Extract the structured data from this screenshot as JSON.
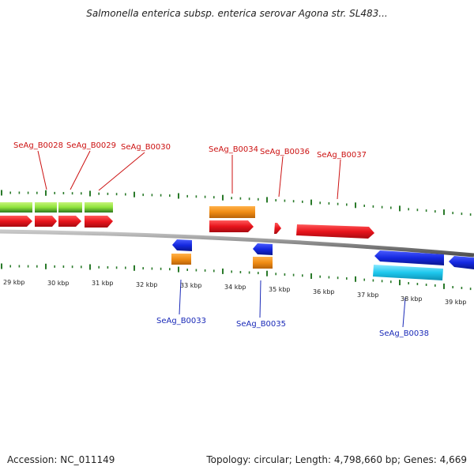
{
  "title": "Salmonella enterica subsp. enterica serovar Agona str. SL483...",
  "footer": {
    "accession": "Accession: NC_011149",
    "topology": "Topology: circular; Length: 4,798,660 bp; Genes: 4,669"
  },
  "colors": {
    "forward_cds": "#e8141c",
    "forward_gene": "#f08c14",
    "reverse_cds": "#1428e0",
    "reverse_gene": "#1ec8ee",
    "rna": "#8ee23a",
    "backbone": "#8a8a8a",
    "ticks": "#2a7a2a",
    "forward_label": "#cc1111",
    "reverse_label": "#1a2ab8"
  },
  "scale": {
    "kbp_ticks": [
      "29 kbp",
      "30 kbp",
      "31 kbp",
      "32 kbp",
      "33 kbp",
      "34 kbp",
      "35 kbp",
      "36 kbp",
      "37 kbp",
      "38 kbp",
      "39 kbp"
    ]
  },
  "genes": {
    "forward": [
      "SeAg_B0028",
      "SeAg_B0029",
      "SeAg_B0030",
      "SeAg_B0034",
      "SeAg_B0036",
      "SeAg_B0037"
    ],
    "reverse": [
      "SeAg_B0033",
      "SeAg_B0035",
      "SeAg_B0038"
    ]
  }
}
